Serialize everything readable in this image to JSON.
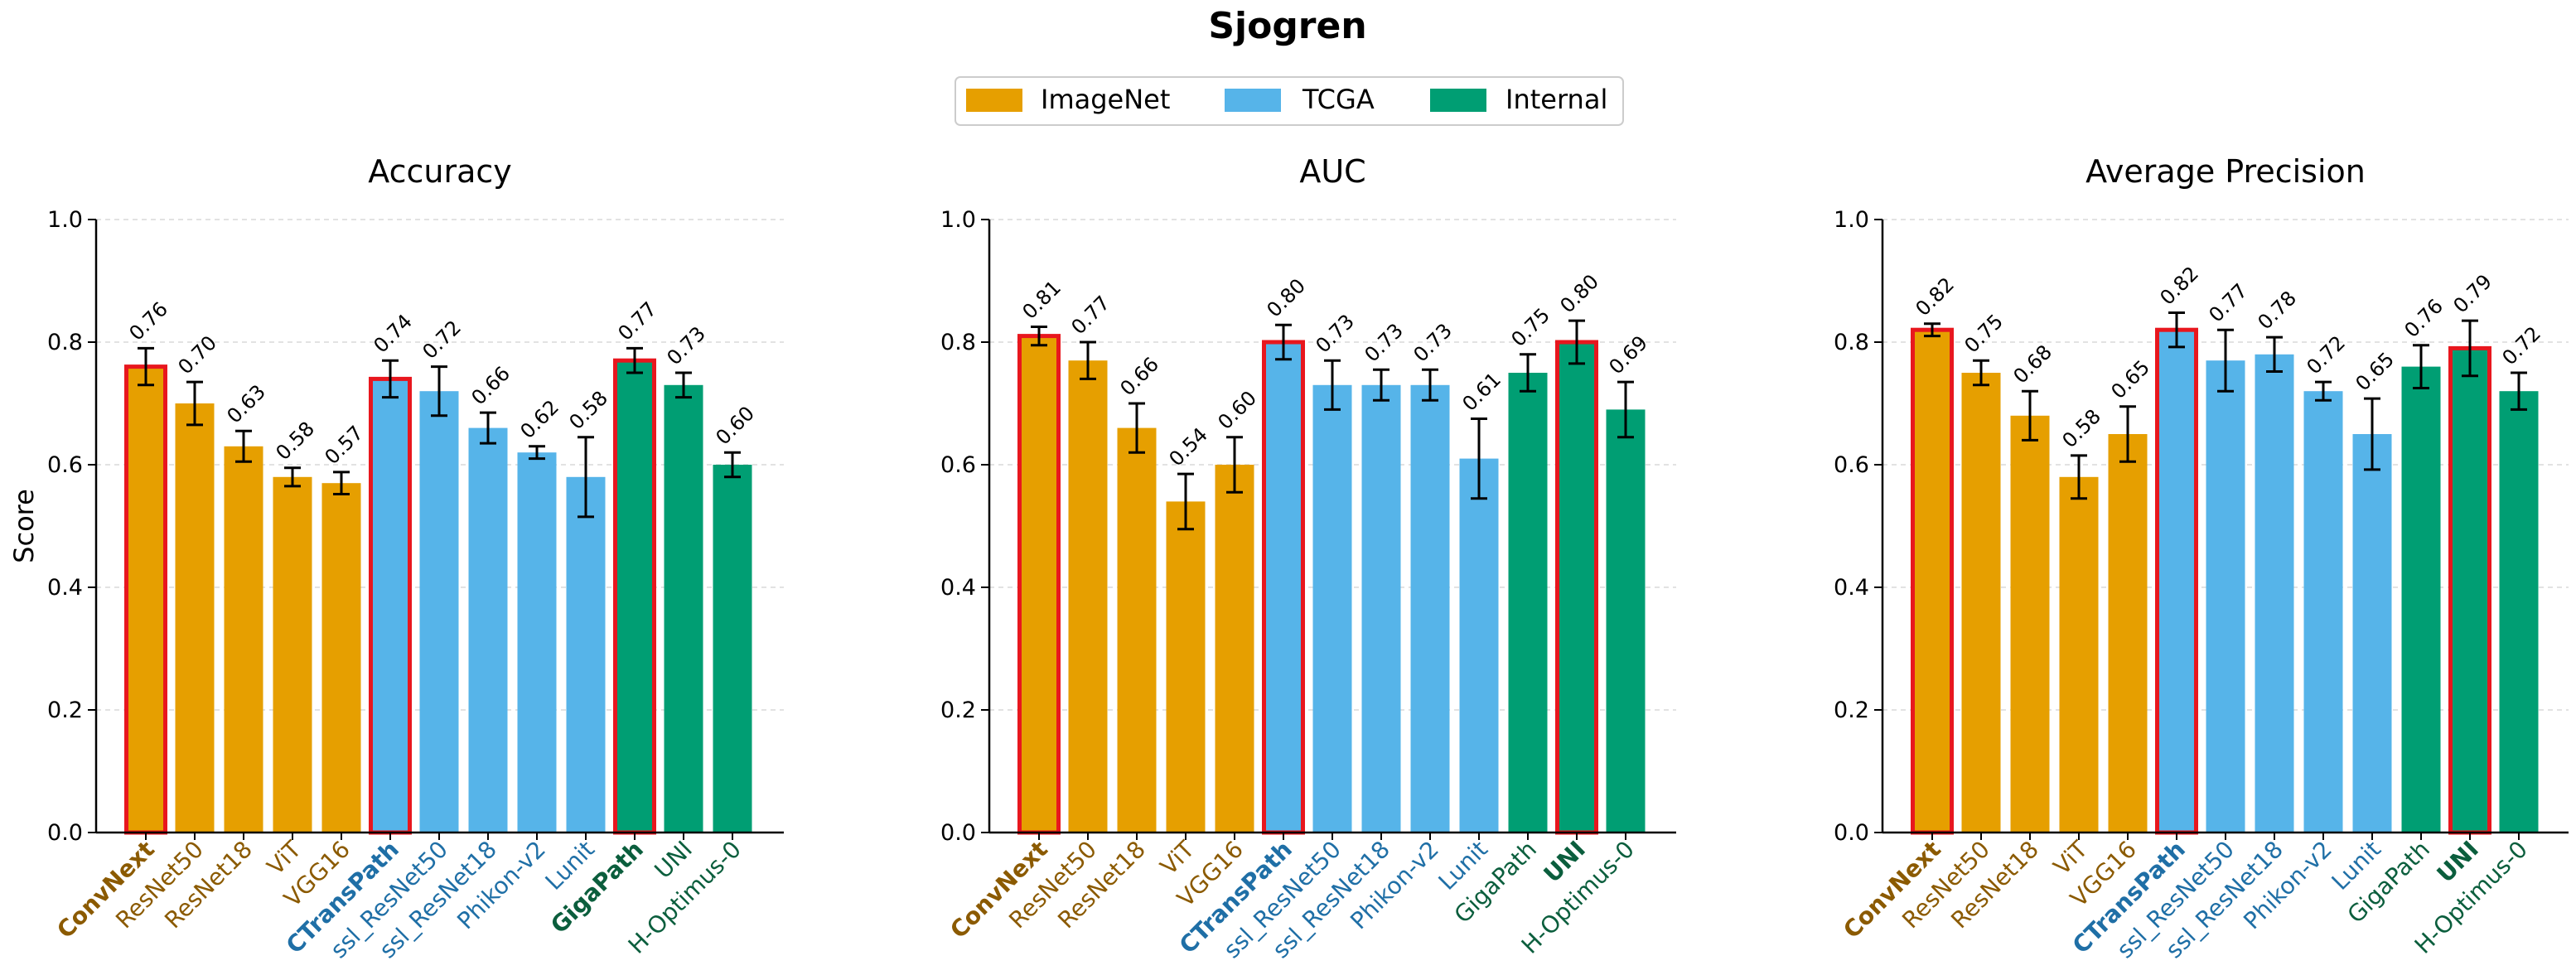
{
  "title": "Sjogren",
  "legend": {
    "placement": "top-center",
    "items": [
      {
        "label": "ImageNet",
        "color": "#E69F00"
      },
      {
        "label": "TCGA",
        "color": "#56B4E9"
      },
      {
        "label": "Internal",
        "color": "#009E73"
      }
    ]
  },
  "colors": {
    "imagenet_bar": "#E69F00",
    "tcga_bar": "#56B4E9",
    "internal_bar": "#009E73",
    "imagenet_text": "#8B5A00",
    "tcga_text": "#1F6FA6",
    "internal_text": "#0B5E3D",
    "highlight_border": "#E8171E",
    "error_bar": "#000000",
    "grid": "#d9d9d9"
  },
  "chart_data": [
    {
      "type": "bar",
      "title": "Accuracy",
      "ylabel": "Score",
      "ylim": [
        0,
        1.0
      ],
      "yticks": [
        "0.0",
        "0.2",
        "0.4",
        "0.6",
        "0.8",
        "1.0"
      ],
      "grid": true,
      "categories": [
        "ConvNext",
        "ResNet50",
        "ResNet18",
        "ViT",
        "VGG16",
        "CTransPath",
        "ssl_ResNet50",
        "ssl_ResNet18",
        "Phikon-v2",
        "Lunit",
        "GigaPath",
        "UNI",
        "H-Optimus-0"
      ],
      "groups": [
        "ImageNet",
        "ImageNet",
        "ImageNet",
        "ImageNet",
        "ImageNet",
        "TCGA",
        "TCGA",
        "TCGA",
        "TCGA",
        "TCGA",
        "Internal",
        "Internal",
        "Internal"
      ],
      "values": [
        0.76,
        0.7,
        0.63,
        0.58,
        0.57,
        0.74,
        0.72,
        0.66,
        0.62,
        0.58,
        0.77,
        0.73,
        0.6
      ],
      "labels": [
        "0.76",
        "0.70",
        "0.63",
        "0.58",
        "0.57",
        "0.74",
        "0.72",
        "0.66",
        "0.62",
        "0.58",
        "0.77",
        "0.73",
        "0.60"
      ],
      "errors": [
        0.03,
        0.035,
        0.025,
        0.015,
        0.018,
        0.03,
        0.04,
        0.025,
        0.01,
        0.065,
        0.02,
        0.02,
        0.02
      ],
      "highlighted": [
        "ConvNext",
        "CTransPath",
        "GigaPath"
      ]
    },
    {
      "type": "bar",
      "title": "AUC",
      "ylabel": "",
      "ylim": [
        0,
        1.0
      ],
      "yticks": [
        "0.0",
        "0.2",
        "0.4",
        "0.6",
        "0.8",
        "1.0"
      ],
      "grid": true,
      "categories": [
        "ConvNext",
        "ResNet50",
        "ResNet18",
        "ViT",
        "VGG16",
        "CTransPath",
        "ssl_ResNet50",
        "ssl_ResNet18",
        "Phikon-v2",
        "Lunit",
        "GigaPath",
        "UNI",
        "H-Optimus-0"
      ],
      "groups": [
        "ImageNet",
        "ImageNet",
        "ImageNet",
        "ImageNet",
        "ImageNet",
        "TCGA",
        "TCGA",
        "TCGA",
        "TCGA",
        "TCGA",
        "Internal",
        "Internal",
        "Internal"
      ],
      "values": [
        0.81,
        0.77,
        0.66,
        0.54,
        0.6,
        0.8,
        0.73,
        0.73,
        0.73,
        0.61,
        0.75,
        0.8,
        0.69
      ],
      "labels": [
        "0.81",
        "0.77",
        "0.66",
        "0.54",
        "0.60",
        "0.80",
        "0.73",
        "0.73",
        "0.73",
        "0.61",
        "0.75",
        "0.80",
        "0.69"
      ],
      "errors": [
        0.015,
        0.03,
        0.04,
        0.045,
        0.045,
        0.028,
        0.04,
        0.025,
        0.025,
        0.065,
        0.03,
        0.035,
        0.045
      ],
      "highlighted": [
        "ConvNext",
        "CTransPath",
        "UNI"
      ]
    },
    {
      "type": "bar",
      "title": "Average Precision",
      "ylabel": "",
      "ylim": [
        0,
        1.0
      ],
      "yticks": [
        "0.0",
        "0.2",
        "0.4",
        "0.6",
        "0.8",
        "1.0"
      ],
      "grid": true,
      "categories": [
        "ConvNext",
        "ResNet50",
        "ResNet18",
        "ViT",
        "VGG16",
        "CTransPath",
        "ssl_ResNet50",
        "ssl_ResNet18",
        "Phikon-v2",
        "Lunit",
        "GigaPath",
        "UNI",
        "H-Optimus-0"
      ],
      "groups": [
        "ImageNet",
        "ImageNet",
        "ImageNet",
        "ImageNet",
        "ImageNet",
        "TCGA",
        "TCGA",
        "TCGA",
        "TCGA",
        "TCGA",
        "Internal",
        "Internal",
        "Internal"
      ],
      "values": [
        0.82,
        0.75,
        0.68,
        0.58,
        0.65,
        0.82,
        0.77,
        0.78,
        0.72,
        0.65,
        0.76,
        0.79,
        0.72
      ],
      "labels": [
        "0.82",
        "0.75",
        "0.68",
        "0.58",
        "0.65",
        "0.82",
        "0.77",
        "0.78",
        "0.72",
        "0.65",
        "0.76",
        "0.79",
        "0.72"
      ],
      "errors": [
        0.01,
        0.02,
        0.04,
        0.035,
        0.045,
        0.028,
        0.05,
        0.028,
        0.015,
        0.058,
        0.035,
        0.045,
        0.03
      ],
      "highlighted": [
        "ConvNext",
        "CTransPath",
        "UNI"
      ]
    }
  ]
}
